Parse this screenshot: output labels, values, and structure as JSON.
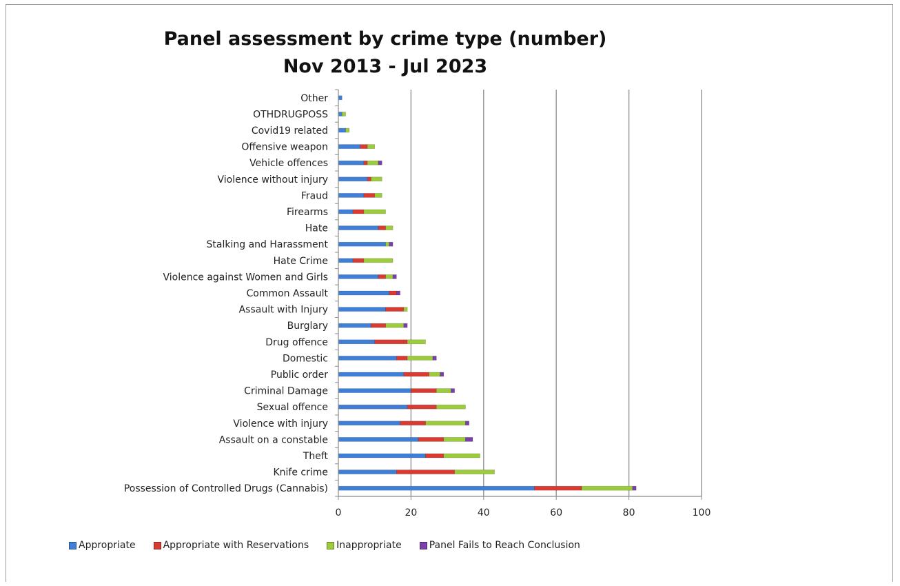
{
  "chart_data": {
    "type": "bar",
    "orientation": "horizontal",
    "stacked": true,
    "title": "Panel assessment by crime type (number)",
    "subtitle": "Nov 2013 - Jul  2023",
    "xlim": [
      0,
      100
    ],
    "xticks": [
      0,
      20,
      40,
      60,
      80,
      100
    ],
    "grid": "vertical",
    "legend_position": "bottom",
    "categories": [
      "Possession of Controlled Drugs (Cannabis)",
      "Knife crime",
      "Theft",
      "Assault on a constable",
      "Violence with injury",
      "Sexual offence",
      "Criminal Damage",
      "Public order",
      "Domestic",
      "Drug offence",
      "Burglary",
      "Assault with Injury",
      "Common Assault",
      "Violence against Women and Girls",
      "Hate Crime",
      "Stalking and Harassment",
      "Hate",
      "Firearms",
      "Fraud",
      "Violence without injury",
      "Vehicle offences",
      "Offensive weapon",
      "Covid19 related",
      "OTHDRUGPOSS",
      "Other"
    ],
    "series": [
      {
        "name": "Appropriate",
        "color": "#3f7fd8",
        "values": [
          54,
          16,
          24,
          22,
          17,
          19,
          20,
          18,
          16,
          10,
          9,
          13,
          14,
          11,
          4,
          13,
          11,
          4,
          7,
          8,
          7,
          6,
          2,
          1,
          1
        ]
      },
      {
        "name": "Appropriate with Reservations",
        "color": "#d93a32",
        "values": [
          13,
          16,
          5,
          7,
          7,
          8,
          7,
          7,
          3,
          9,
          4,
          5,
          2,
          2,
          3,
          0,
          2,
          3,
          3,
          1,
          1,
          2,
          0,
          0,
          0
        ]
      },
      {
        "name": "Inappropriate",
        "color": "#9ccc3c",
        "values": [
          14,
          11,
          10,
          6,
          11,
          8,
          4,
          3,
          7,
          5,
          5,
          1,
          0,
          2,
          8,
          1,
          2,
          6,
          2,
          3,
          3,
          2,
          1,
          1,
          0
        ]
      },
      {
        "name": "Panel Fails to Reach Conclusion",
        "color": "#7a3fa8",
        "values": [
          1,
          0,
          0,
          2,
          1,
          0,
          1,
          1,
          1,
          0,
          1,
          0,
          1,
          1,
          0,
          1,
          0,
          0,
          0,
          0,
          1,
          0,
          0,
          0,
          0
        ]
      }
    ]
  }
}
